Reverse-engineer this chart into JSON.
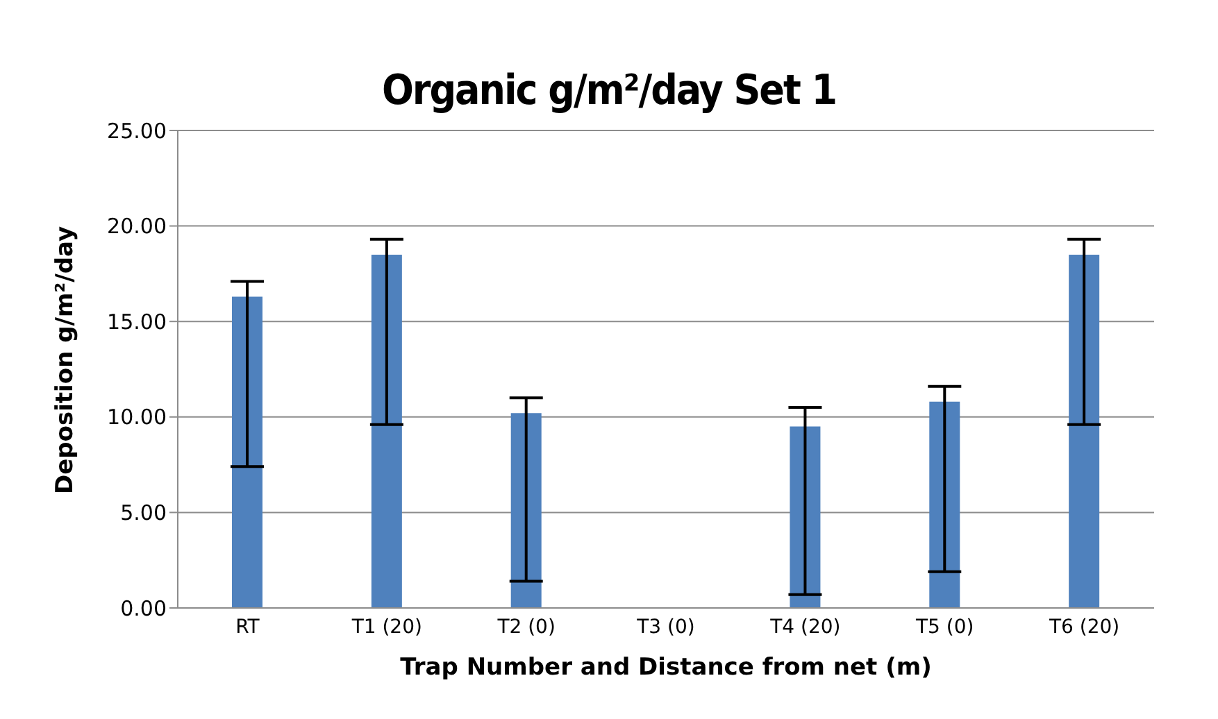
{
  "chart_data": {
    "type": "bar",
    "title": "Organic g/m²/day Set 1",
    "xlabel": "Trap Number and Distance from net (m)",
    "ylabel": "Deposition g/m²/day",
    "categories": [
      "RT",
      "T1 (20)",
      "T2 (0)",
      "T3 (0)",
      "T4 (20)",
      "T5 (0)",
      "T6 (20)"
    ],
    "values": [
      16.3,
      18.5,
      10.2,
      null,
      9.5,
      10.8,
      18.5
    ],
    "errors": [
      [
        7.4,
        17.1
      ],
      [
        9.6,
        19.3
      ],
      [
        1.4,
        11.0
      ],
      null,
      [
        0.7,
        10.5
      ],
      [
        1.9,
        11.6
      ],
      [
        9.6,
        19.3
      ]
    ],
    "color": "#4f81bd",
    "ylim": [
      0,
      25
    ],
    "yticks": [
      {
        "value": 0,
        "label": "0.00"
      },
      {
        "value": 5,
        "label": "5.00"
      },
      {
        "value": 10,
        "label": "10.00"
      },
      {
        "value": 15,
        "label": "15.00"
      },
      {
        "value": 20,
        "label": "20.00"
      },
      {
        "value": 25,
        "label": "25.00"
      }
    ],
    "grid": "y",
    "legend": false
  }
}
